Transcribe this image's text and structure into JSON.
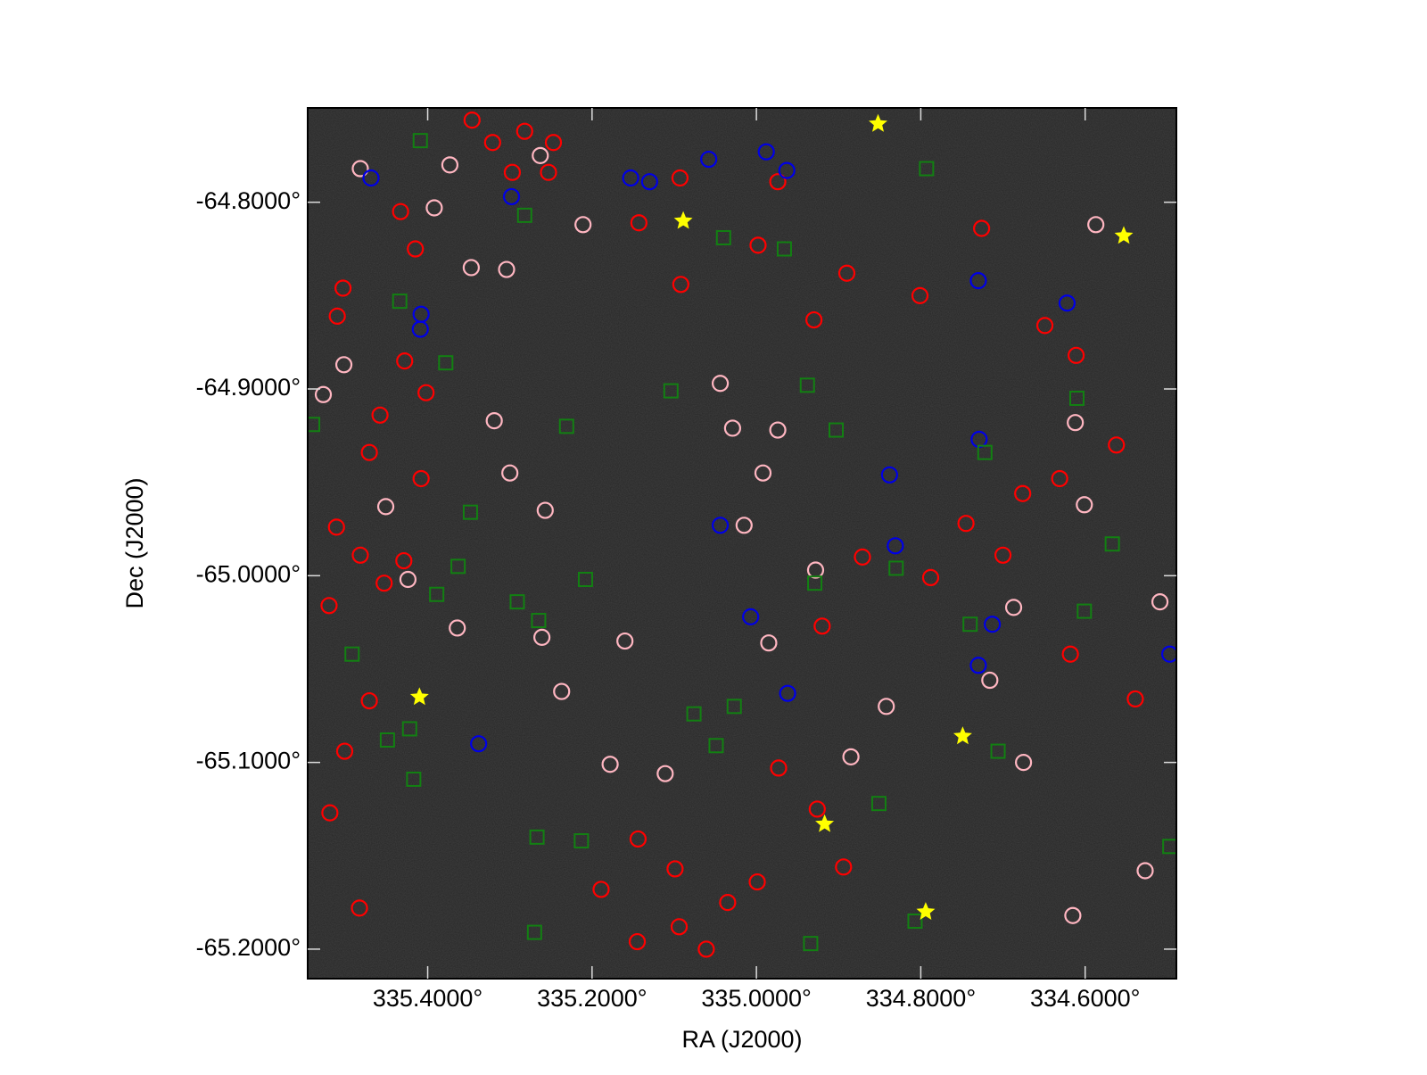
{
  "chart_data": {
    "type": "scatter",
    "xlabel": "RA (J2000)",
    "ylabel": "Dec (J2000)",
    "xlim": [
      335.546,
      334.489
    ],
    "ylim": [
      -65.2158,
      -64.7495
    ],
    "xticks": [
      {
        "value": 335.4,
        "label": "335.4000°"
      },
      {
        "value": 335.2,
        "label": "335.2000°"
      },
      {
        "value": 335.0,
        "label": "335.0000°"
      },
      {
        "value": 334.8,
        "label": "334.8000°"
      },
      {
        "value": 334.6,
        "label": "334.6000°"
      }
    ],
    "yticks": [
      {
        "value": -64.8,
        "label": "-64.8000°"
      },
      {
        "value": -64.9,
        "label": "-64.9000°"
      },
      {
        "value": -65.0,
        "label": "-65.0000°"
      },
      {
        "value": -65.1,
        "label": "-65.1000°"
      },
      {
        "value": -65.2,
        "label": "-65.2000°"
      }
    ],
    "background": "#262626",
    "series": [
      {
        "color": "#ff0000",
        "marker": "circle",
        "x": [
          335.346,
          335.321,
          335.282,
          335.247,
          335.297,
          335.253,
          335.433,
          335.415,
          335.503,
          335.51,
          335.428,
          335.402,
          335.458,
          335.471,
          335.408,
          335.511,
          335.482,
          335.429,
          335.453,
          335.52,
          335.471,
          335.501,
          335.519,
          335.483,
          335.143,
          335.093,
          335.092,
          334.974,
          334.998,
          334.89,
          334.93,
          334.801,
          334.726,
          334.649,
          334.611,
          334.562,
          334.631,
          334.618,
          334.539,
          334.676,
          334.7,
          334.745,
          334.788,
          334.871,
          334.92,
          334.973,
          334.926,
          334.894,
          335.035,
          334.999,
          335.061,
          335.099,
          335.144,
          335.189,
          335.145,
          335.094
        ],
        "y": [
          -64.756,
          -64.768,
          -64.762,
          -64.768,
          -64.784,
          -64.784,
          -64.805,
          -64.825,
          -64.846,
          -64.861,
          -64.885,
          -64.902,
          -64.914,
          -64.934,
          -64.948,
          -64.974,
          -64.989,
          -64.992,
          -65.004,
          -65.016,
          -65.067,
          -65.094,
          -65.127,
          -65.178,
          -64.811,
          -64.787,
          -64.844,
          -64.789,
          -64.823,
          -64.838,
          -64.863,
          -64.85,
          -64.814,
          -64.866,
          -64.882,
          -64.93,
          -64.948,
          -65.042,
          -65.066,
          -64.956,
          -64.989,
          -64.972,
          -65.001,
          -64.99,
          -65.027,
          -65.103,
          -65.125,
          -65.156,
          -65.175,
          -65.164,
          -65.2,
          -65.157,
          -65.141,
          -65.168,
          -65.196,
          -65.188
        ]
      },
      {
        "color": "#ffb6c1",
        "marker": "circle",
        "x": [
          335.482,
          335.373,
          335.263,
          335.211,
          335.304,
          335.347,
          335.392,
          335.502,
          335.527,
          335.319,
          335.3,
          335.257,
          335.451,
          335.424,
          335.364,
          335.261,
          335.237,
          335.178,
          335.16,
          335.111,
          335.044,
          335.029,
          334.974,
          334.992,
          335.015,
          334.985,
          334.928,
          334.885,
          334.842,
          334.716,
          334.687,
          334.675,
          334.615,
          334.527,
          334.509,
          334.587,
          334.612,
          334.601
        ],
        "y": [
          -64.782,
          -64.78,
          -64.775,
          -64.812,
          -64.836,
          -64.835,
          -64.803,
          -64.887,
          -64.903,
          -64.917,
          -64.945,
          -64.965,
          -64.963,
          -65.002,
          -65.028,
          -65.033,
          -65.062,
          -65.101,
          -65.035,
          -65.106,
          -64.897,
          -64.921,
          -64.922,
          -64.945,
          -64.973,
          -65.036,
          -64.997,
          -65.097,
          -65.07,
          -65.056,
          -65.017,
          -65.1,
          -65.182,
          -65.158,
          -65.014,
          -64.812,
          -64.918,
          -64.962
        ]
      },
      {
        "color": "#0000e6",
        "marker": "circle",
        "x": [
          335.469,
          335.298,
          335.153,
          335.13,
          335.058,
          334.988,
          334.963,
          335.408,
          335.409,
          334.73,
          334.622,
          334.838,
          335.044,
          334.831,
          335.007,
          334.73,
          334.713,
          334.962,
          335.338,
          334.497,
          334.729
        ],
        "y": [
          -64.787,
          -64.797,
          -64.787,
          -64.789,
          -64.777,
          -64.773,
          -64.783,
          -64.86,
          -64.868,
          -64.842,
          -64.854,
          -64.946,
          -64.973,
          -64.984,
          -65.022,
          -65.048,
          -65.026,
          -65.063,
          -65.09,
          -65.042,
          -64.927
        ]
      },
      {
        "color": "#128012",
        "marker": "square",
        "x": [
          335.409,
          335.282,
          335.04,
          334.966,
          334.793,
          335.434,
          335.378,
          335.104,
          334.938,
          334.903,
          334.61,
          334.722,
          335.231,
          335.348,
          335.363,
          335.208,
          335.389,
          335.291,
          335.265,
          334.929,
          334.83,
          334.74,
          334.601,
          334.567,
          335.492,
          335.449,
          335.422,
          335.417,
          335.076,
          335.027,
          335.049,
          334.706,
          334.851,
          335.267,
          335.213,
          334.934,
          334.807,
          335.27,
          335.54,
          334.497
        ],
        "y": [
          -64.767,
          -64.807,
          -64.819,
          -64.825,
          -64.782,
          -64.853,
          -64.886,
          -64.901,
          -64.898,
          -64.922,
          -64.905,
          -64.934,
          -64.92,
          -64.966,
          -64.995,
          -65.002,
          -65.01,
          -65.014,
          -65.024,
          -65.004,
          -64.996,
          -65.026,
          -65.019,
          -64.983,
          -65.042,
          -65.088,
          -65.082,
          -65.109,
          -65.074,
          -65.07,
          -65.091,
          -65.094,
          -65.122,
          -65.14,
          -65.142,
          -65.197,
          -65.185,
          -65.191,
          -64.919,
          -65.145
        ]
      },
      {
        "color": "#ffff00",
        "marker": "star",
        "x": [
          334.852,
          335.089,
          334.553,
          335.41,
          334.749,
          334.917,
          334.794
        ],
        "y": [
          -64.758,
          -64.81,
          -64.818,
          -65.065,
          -65.086,
          -65.133,
          -65.18
        ]
      }
    ]
  }
}
